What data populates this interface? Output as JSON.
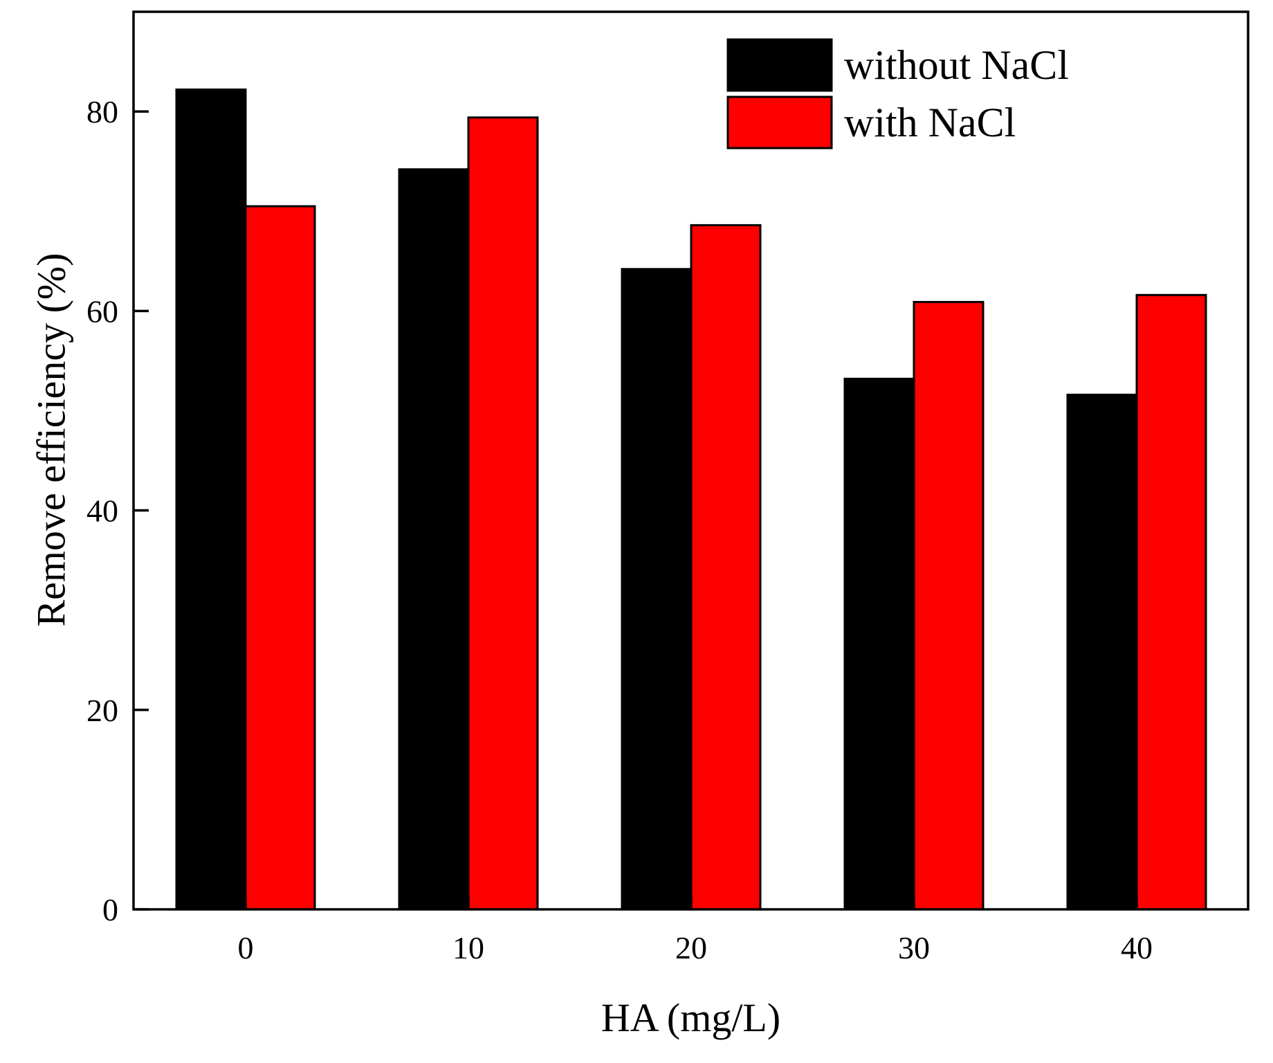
{
  "chart_data": {
    "type": "bar",
    "title": "",
    "xlabel": "HA (mg/L)",
    "ylabel": "Remove efficiency (%)",
    "categories": [
      "0",
      "10",
      "20",
      "30",
      "40"
    ],
    "series": [
      {
        "name": "without NaCl",
        "color": "#000000",
        "values": [
          82.2,
          74.2,
          64.2,
          53.2,
          51.6
        ]
      },
      {
        "name": "with NaCl",
        "color": "#ff0000",
        "values": [
          70.5,
          79.4,
          68.6,
          60.9,
          61.6
        ]
      }
    ],
    "ylim": [
      0,
      90
    ],
    "yticks": [
      "0",
      "20",
      "40",
      "60",
      "80"
    ],
    "grid": false,
    "legend_position": "top-right"
  }
}
